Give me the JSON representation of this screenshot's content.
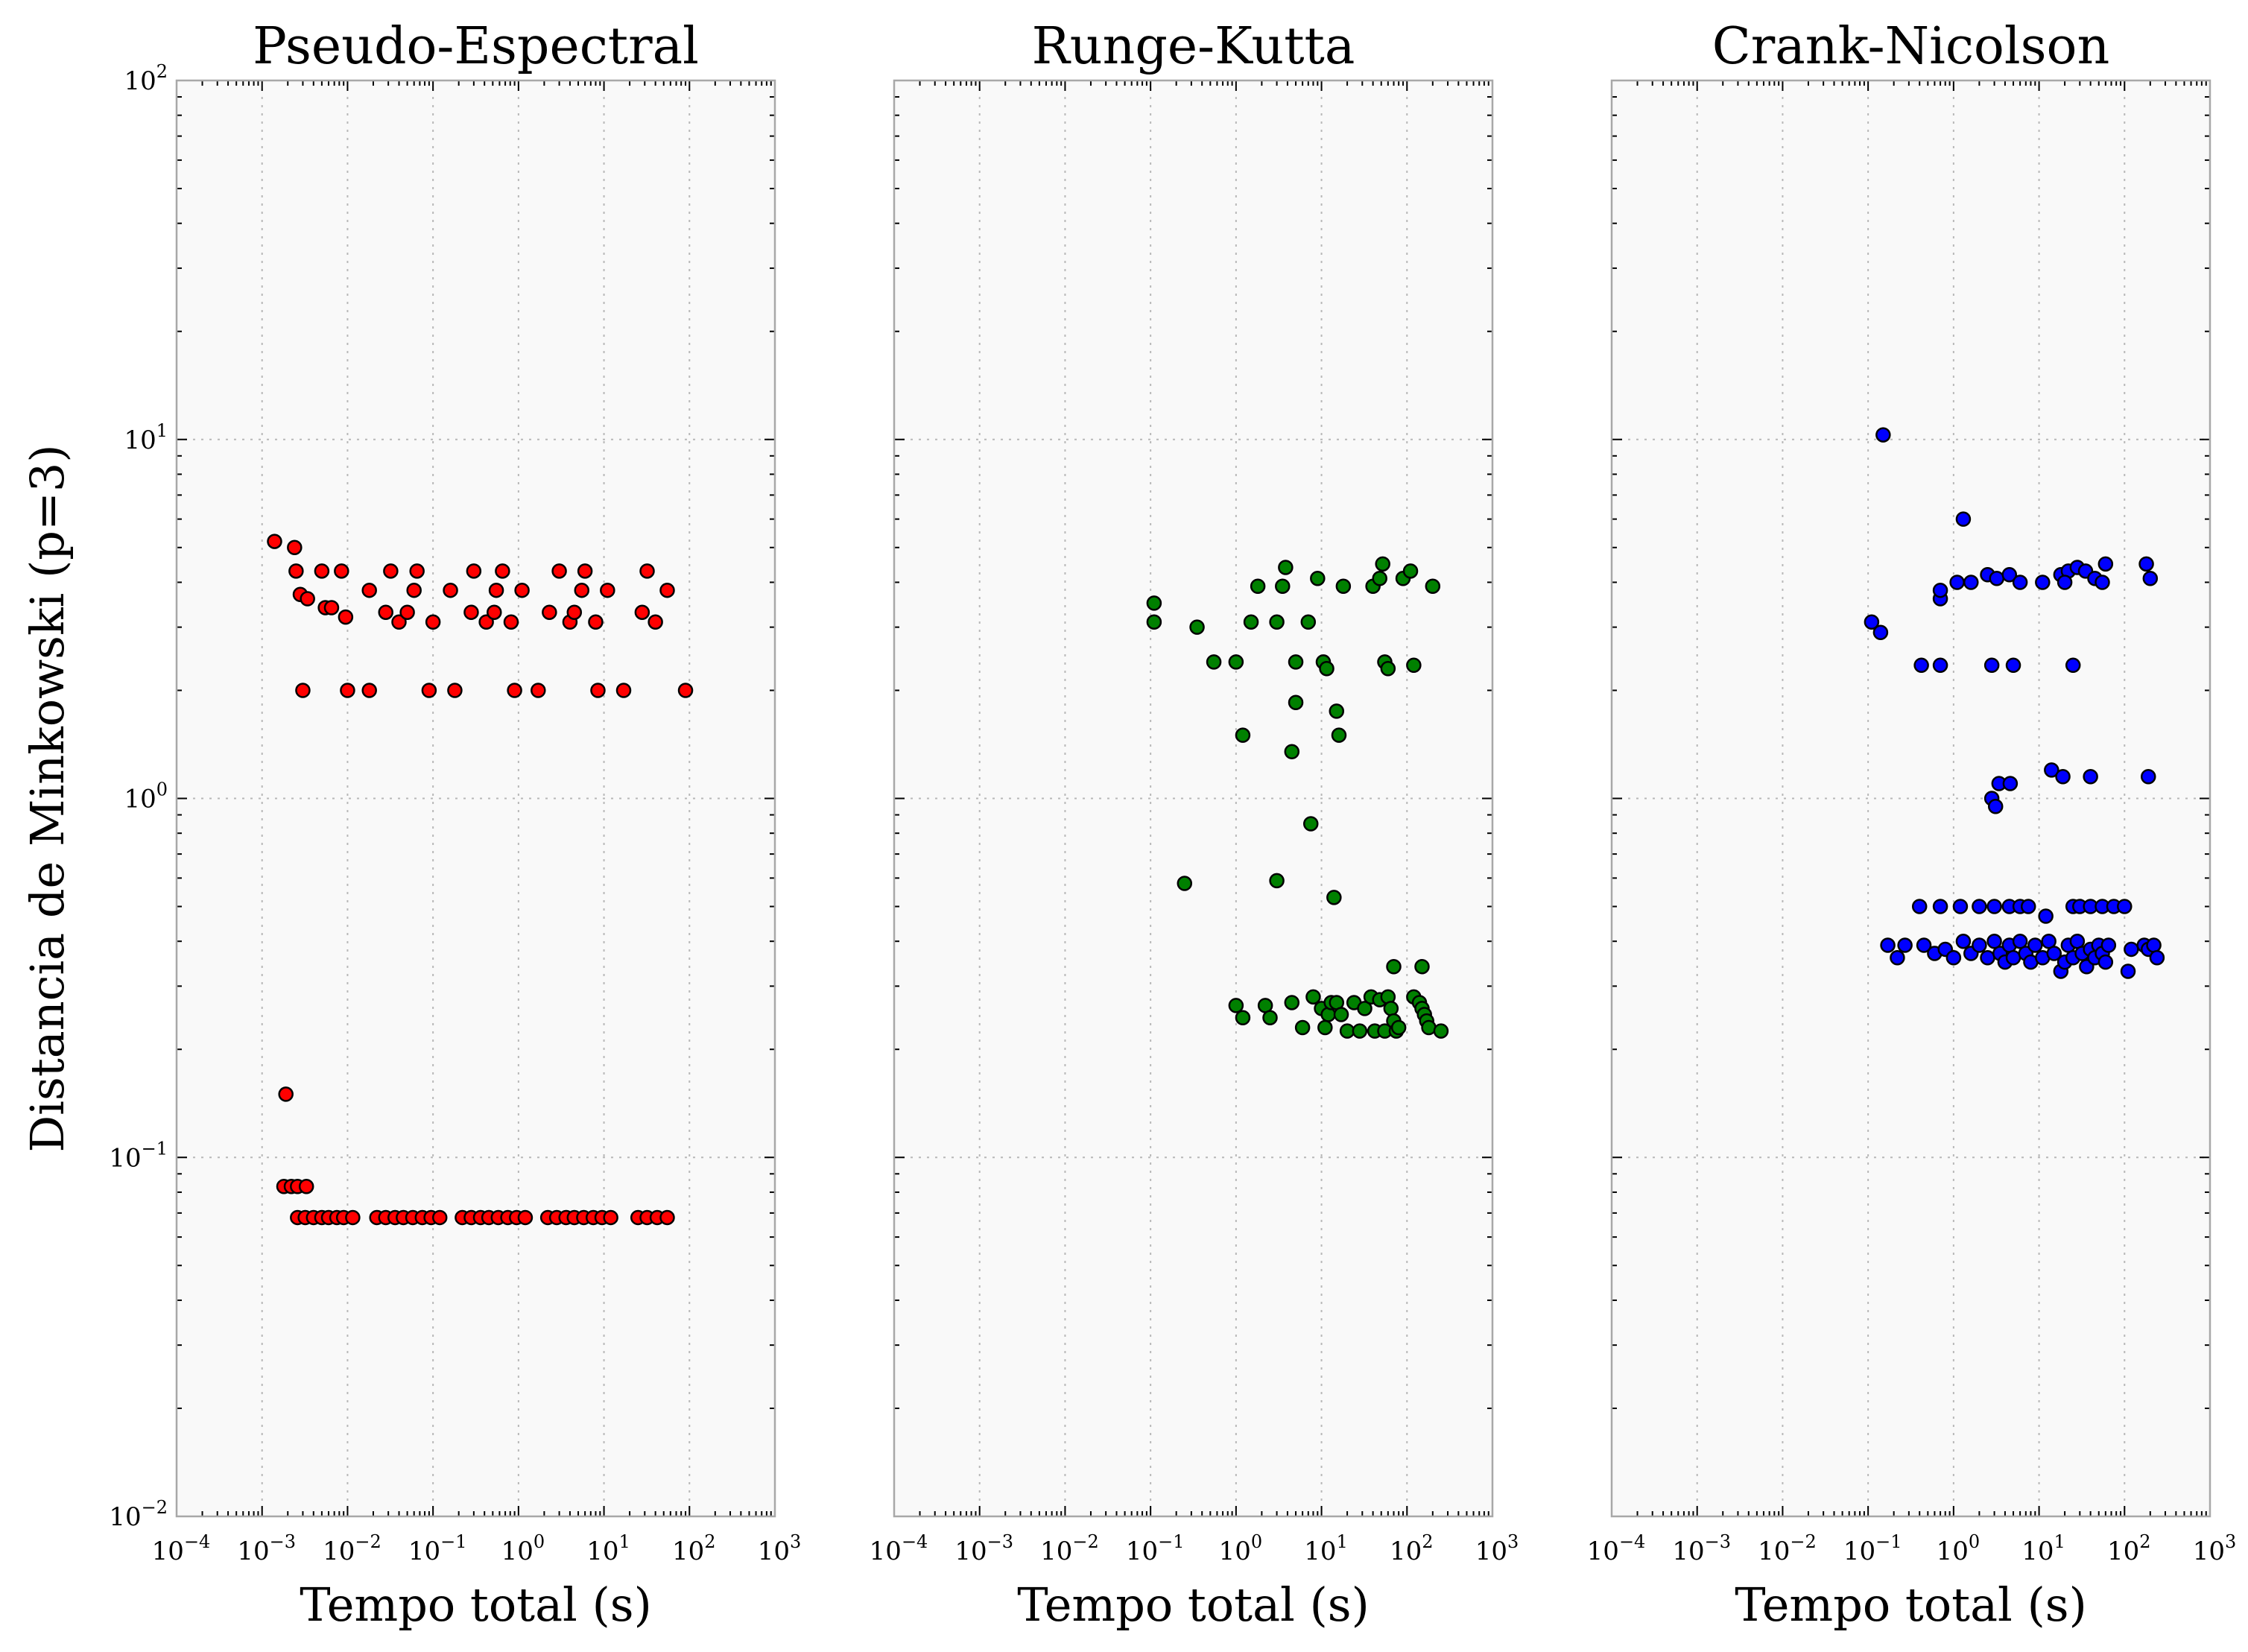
{
  "chart_data": [
    {
      "type": "scatter",
      "title": "Pseudo-Espectral",
      "xlabel": "Tempo total (s)",
      "ylabel": "Distancia de Minkowski (p=3)",
      "xscale": "log",
      "yscale": "log",
      "xlim": [
        0.0001,
        1000
      ],
      "ylim": [
        0.01,
        100
      ],
      "grid": true,
      "xticks": [
        "10^-4",
        "10^-3",
        "10^-2",
        "10^-1",
        "10^0",
        "10^1",
        "10^2",
        "10^3"
      ],
      "yticks": [
        "10^-2",
        "10^-1",
        "10^0",
        "10^1",
        "10^2"
      ],
      "color": "#ff0000",
      "points": [
        [
          0.0014,
          5.2
        ],
        [
          0.0024,
          5.0
        ],
        [
          0.0025,
          4.3
        ],
        [
          0.0028,
          3.7
        ],
        [
          0.0034,
          3.6
        ],
        [
          0.005,
          4.3
        ],
        [
          0.0055,
          3.4
        ],
        [
          0.0065,
          3.4
        ],
        [
          0.0085,
          4.3
        ],
        [
          0.0095,
          3.2
        ],
        [
          0.018,
          3.8
        ],
        [
          0.028,
          3.3
        ],
        [
          0.032,
          4.3
        ],
        [
          0.04,
          3.1
        ],
        [
          0.05,
          3.3
        ],
        [
          0.06,
          3.8
        ],
        [
          0.065,
          4.3
        ],
        [
          0.1,
          3.1
        ],
        [
          0.16,
          3.8
        ],
        [
          0.28,
          3.3
        ],
        [
          0.3,
          4.3
        ],
        [
          0.42,
          3.1
        ],
        [
          0.52,
          3.3
        ],
        [
          0.55,
          3.8
        ],
        [
          0.65,
          4.3
        ],
        [
          0.82,
          3.1
        ],
        [
          1.1,
          3.8
        ],
        [
          2.3,
          3.3
        ],
        [
          3.0,
          4.3
        ],
        [
          4.0,
          3.1
        ],
        [
          4.5,
          3.3
        ],
        [
          5.5,
          3.8
        ],
        [
          6.0,
          4.3
        ],
        [
          8.0,
          3.1
        ],
        [
          11.0,
          3.8
        ],
        [
          28.0,
          3.3
        ],
        [
          32.0,
          4.3
        ],
        [
          40.0,
          3.1
        ],
        [
          55.0,
          3.8
        ],
        [
          0.003,
          2.0
        ],
        [
          0.01,
          2.0
        ],
        [
          0.018,
          2.0
        ],
        [
          0.09,
          2.0
        ],
        [
          0.18,
          2.0
        ],
        [
          0.9,
          2.0
        ],
        [
          1.7,
          2.0
        ],
        [
          8.5,
          2.0
        ],
        [
          17.0,
          2.0
        ],
        [
          90.0,
          2.0
        ],
        [
          0.0019,
          0.15
        ],
        [
          0.0018,
          0.083
        ],
        [
          0.0022,
          0.083
        ],
        [
          0.0026,
          0.083
        ],
        [
          0.0033,
          0.083
        ],
        [
          0.0026,
          0.068
        ],
        [
          0.0032,
          0.068
        ],
        [
          0.004,
          0.068
        ],
        [
          0.005,
          0.068
        ],
        [
          0.006,
          0.068
        ],
        [
          0.0075,
          0.068
        ],
        [
          0.009,
          0.068
        ],
        [
          0.0115,
          0.068
        ],
        [
          0.022,
          0.068
        ],
        [
          0.028,
          0.068
        ],
        [
          0.036,
          0.068
        ],
        [
          0.045,
          0.068
        ],
        [
          0.058,
          0.068
        ],
        [
          0.075,
          0.068
        ],
        [
          0.095,
          0.068
        ],
        [
          0.12,
          0.068
        ],
        [
          0.22,
          0.068
        ],
        [
          0.28,
          0.068
        ],
        [
          0.36,
          0.068
        ],
        [
          0.45,
          0.068
        ],
        [
          0.58,
          0.068
        ],
        [
          0.75,
          0.068
        ],
        [
          0.95,
          0.068
        ],
        [
          1.2,
          0.068
        ],
        [
          2.2,
          0.068
        ],
        [
          2.8,
          0.068
        ],
        [
          3.6,
          0.068
        ],
        [
          4.5,
          0.068
        ],
        [
          5.8,
          0.068
        ],
        [
          7.5,
          0.068
        ],
        [
          9.5,
          0.068
        ],
        [
          12.0,
          0.068
        ],
        [
          25.0,
          0.068
        ],
        [
          32.0,
          0.068
        ],
        [
          42.0,
          0.068
        ],
        [
          55.0,
          0.068
        ]
      ]
    },
    {
      "type": "scatter",
      "title": "Runge-Kutta",
      "xlabel": "Tempo total (s)",
      "xscale": "log",
      "yscale": "log",
      "xlim": [
        0.0001,
        1000
      ],
      "ylim": [
        0.01,
        100
      ],
      "grid": true,
      "xticks": [
        "10^-4",
        "10^-3",
        "10^-2",
        "10^-1",
        "10^0",
        "10^1",
        "10^2",
        "10^3"
      ],
      "color": "#008000",
      "points": [
        [
          0.11,
          3.5
        ],
        [
          0.11,
          3.1
        ],
        [
          0.35,
          3.0
        ],
        [
          0.55,
          2.4
        ],
        [
          1.0,
          2.4
        ],
        [
          1.5,
          3.1
        ],
        [
          1.8,
          3.9
        ],
        [
          3.0,
          3.1
        ],
        [
          3.5,
          3.9
        ],
        [
          3.8,
          4.4
        ],
        [
          5.0,
          2.4
        ],
        [
          7.0,
          3.1
        ],
        [
          9.0,
          4.1
        ],
        [
          10.5,
          2.4
        ],
        [
          11.5,
          2.3
        ],
        [
          18.0,
          3.9
        ],
        [
          40.0,
          3.9
        ],
        [
          48.0,
          4.1
        ],
        [
          52.0,
          4.5
        ],
        [
          55.0,
          2.4
        ],
        [
          60.0,
          2.3
        ],
        [
          90.0,
          4.1
        ],
        [
          110.0,
          4.3
        ],
        [
          120.0,
          2.35
        ],
        [
          200.0,
          3.9
        ],
        [
          5.0,
          1.85
        ],
        [
          15.0,
          1.75
        ],
        [
          1.2,
          1.5
        ],
        [
          16.0,
          1.5
        ],
        [
          4.5,
          1.35
        ],
        [
          7.5,
          0.85
        ],
        [
          0.25,
          0.58
        ],
        [
          3.0,
          0.59
        ],
        [
          14.0,
          0.53
        ],
        [
          70.0,
          0.34
        ],
        [
          150.0,
          0.34
        ],
        [
          1.0,
          0.265
        ],
        [
          1.2,
          0.245
        ],
        [
          2.2,
          0.265
        ],
        [
          2.5,
          0.245
        ],
        [
          4.5,
          0.27
        ],
        [
          6.0,
          0.23
        ],
        [
          8.0,
          0.28
        ],
        [
          10.0,
          0.26
        ],
        [
          12.0,
          0.25
        ],
        [
          13.0,
          0.27
        ],
        [
          15.0,
          0.27
        ],
        [
          17.0,
          0.25
        ],
        [
          20.0,
          0.225
        ],
        [
          24.0,
          0.27
        ],
        [
          28.0,
          0.225
        ],
        [
          32.0,
          0.26
        ],
        [
          38.0,
          0.28
        ],
        [
          42.0,
          0.225
        ],
        [
          48.0,
          0.275
        ],
        [
          55.0,
          0.225
        ],
        [
          60.0,
          0.28
        ],
        [
          65.0,
          0.26
        ],
        [
          70.0,
          0.24
        ],
        [
          75.0,
          0.225
        ],
        [
          80.0,
          0.23
        ],
        [
          120.0,
          0.28
        ],
        [
          140.0,
          0.27
        ],
        [
          150.0,
          0.26
        ],
        [
          160.0,
          0.25
        ],
        [
          170.0,
          0.24
        ],
        [
          180.0,
          0.23
        ],
        [
          250.0,
          0.225
        ],
        [
          11.0,
          0.23
        ]
      ]
    },
    {
      "type": "scatter",
      "title": "Crank-Nicolson",
      "xlabel": "Tempo total (s)",
      "xscale": "log",
      "yscale": "log",
      "xlim": [
        0.0001,
        1000
      ],
      "ylim": [
        0.01,
        100
      ],
      "grid": true,
      "xticks": [
        "10^-4",
        "10^-3",
        "10^-2",
        "10^-1",
        "10^0",
        "10^1",
        "10^2",
        "10^3"
      ],
      "color": "#0000ff",
      "points": [
        [
          0.15,
          10.3
        ],
        [
          1.3,
          6.0
        ],
        [
          0.11,
          3.1
        ],
        [
          0.14,
          2.9
        ],
        [
          0.42,
          2.35
        ],
        [
          0.7,
          2.35
        ],
        [
          2.8,
          2.35
        ],
        [
          5.0,
          2.35
        ],
        [
          25.0,
          2.35
        ],
        [
          0.7,
          3.6
        ],
        [
          0.7,
          3.8
        ],
        [
          1.1,
          4.0
        ],
        [
          1.6,
          4.0
        ],
        [
          2.5,
          4.2
        ],
        [
          3.2,
          4.1
        ],
        [
          4.5,
          4.2
        ],
        [
          6.0,
          4.0
        ],
        [
          11.0,
          4.0
        ],
        [
          18.0,
          4.2
        ],
        [
          22.0,
          4.3
        ],
        [
          28.0,
          4.4
        ],
        [
          35.0,
          4.3
        ],
        [
          45.0,
          4.1
        ],
        [
          55.0,
          4.0
        ],
        [
          60.0,
          4.5
        ],
        [
          180.0,
          4.5
        ],
        [
          200.0,
          4.1
        ],
        [
          20.0,
          4.0
        ],
        [
          2.8,
          1.0
        ],
        [
          3.1,
          0.95
        ],
        [
          3.4,
          1.1
        ],
        [
          4.6,
          1.1
        ],
        [
          14.0,
          1.2
        ],
        [
          19.0,
          1.15
        ],
        [
          40.0,
          1.15
        ],
        [
          190.0,
          1.15
        ],
        [
          0.4,
          0.5
        ],
        [
          0.7,
          0.5
        ],
        [
          1.2,
          0.5
        ],
        [
          2.0,
          0.5
        ],
        [
          3.0,
          0.5
        ],
        [
          4.5,
          0.5
        ],
        [
          6.0,
          0.5
        ],
        [
          7.5,
          0.5
        ],
        [
          12.0,
          0.47
        ],
        [
          25.0,
          0.5
        ],
        [
          30.0,
          0.5
        ],
        [
          40.0,
          0.5
        ],
        [
          55.0,
          0.5
        ],
        [
          75.0,
          0.5
        ],
        [
          100.0,
          0.5
        ],
        [
          0.17,
          0.39
        ],
        [
          0.22,
          0.36
        ],
        [
          0.27,
          0.39
        ],
        [
          0.45,
          0.39
        ],
        [
          0.6,
          0.37
        ],
        [
          0.8,
          0.38
        ],
        [
          1.0,
          0.36
        ],
        [
          1.3,
          0.4
        ],
        [
          1.6,
          0.37
        ],
        [
          2.0,
          0.39
        ],
        [
          2.5,
          0.36
        ],
        [
          3.0,
          0.4
        ],
        [
          3.5,
          0.37
        ],
        [
          4.0,
          0.35
        ],
        [
          4.5,
          0.39
        ],
        [
          5.0,
          0.36
        ],
        [
          6.0,
          0.4
        ],
        [
          7.0,
          0.37
        ],
        [
          8.0,
          0.35
        ],
        [
          9.0,
          0.39
        ],
        [
          11.0,
          0.36
        ],
        [
          13.0,
          0.4
        ],
        [
          15.0,
          0.37
        ],
        [
          18.0,
          0.33
        ],
        [
          20.0,
          0.35
        ],
        [
          22.0,
          0.39
        ],
        [
          25.0,
          0.36
        ],
        [
          28.0,
          0.4
        ],
        [
          32.0,
          0.37
        ],
        [
          36.0,
          0.34
        ],
        [
          40.0,
          0.38
        ],
        [
          45.0,
          0.36
        ],
        [
          50.0,
          0.39
        ],
        [
          55.0,
          0.37
        ],
        [
          60.0,
          0.35
        ],
        [
          65.0,
          0.39
        ],
        [
          110.0,
          0.33
        ],
        [
          120.0,
          0.38
        ],
        [
          170.0,
          0.39
        ],
        [
          190.0,
          0.38
        ],
        [
          220.0,
          0.39
        ],
        [
          240.0,
          0.36
        ]
      ]
    }
  ]
}
